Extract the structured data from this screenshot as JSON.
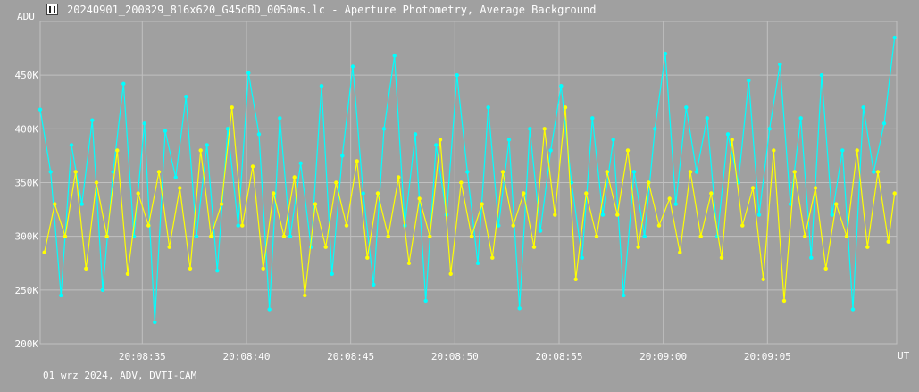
{
  "window": {
    "title": "20240901_200829_816x620_G45dBD_0050ms.lc - Aperture Photometry, Average Background",
    "icon": "lightcurve-app-icon"
  },
  "footer": {
    "caption": "01 wrz 2024, ADV, DVTI-CAM"
  },
  "colors": {
    "background": "#a0a0a0",
    "grid": "#c0c0c0",
    "series_target": "#00ffff",
    "series_comparison": "#ffff00",
    "text": "#ffffff"
  },
  "chart_data": {
    "type": "line",
    "title": "",
    "ylabel": "ADU",
    "xlabel": "UT",
    "ylim": [
      200000,
      500000
    ],
    "xlim": [
      "20:08:30.1",
      "20:09:11.2"
    ],
    "y_ticks": [
      {
        "value": 200000,
        "label": "200K"
      },
      {
        "value": 250000,
        "label": "250K"
      },
      {
        "value": 300000,
        "label": "300K"
      },
      {
        "value": 350000,
        "label": "350K"
      },
      {
        "value": 400000,
        "label": "400K"
      },
      {
        "value": 450000,
        "label": "450K"
      }
    ],
    "x_ticks": [
      "20:08:35",
      "20:08:40",
      "20:08:45",
      "20:08:50",
      "20:08:55",
      "20:09:00",
      "20:09:05"
    ],
    "grid": true,
    "series": [
      {
        "color": "#00ffff",
        "x": [
          "20:08:30.1",
          "20:08:30.6",
          "20:08:31.1",
          "20:08:31.6",
          "20:08:32.1",
          "20:08:32.6",
          "20:08:33.1",
          "20:08:33.6",
          "20:08:34.1",
          "20:08:34.6",
          "20:08:35.1",
          "20:08:35.6",
          "20:08:36.1",
          "20:08:36.6",
          "20:08:37.1",
          "20:08:37.6",
          "20:08:38.1",
          "20:08:38.6",
          "20:08:39.1",
          "20:08:39.6",
          "20:08:40.1",
          "20:08:40.6",
          "20:08:41.1",
          "20:08:41.6",
          "20:08:42.1",
          "20:08:42.6",
          "20:08:43.1",
          "20:08:43.6",
          "20:08:44.1",
          "20:08:44.6",
          "20:08:45.1",
          "20:08:45.6",
          "20:08:46.1",
          "20:08:46.6",
          "20:08:47.1",
          "20:08:47.6",
          "20:08:48.1",
          "20:08:48.6",
          "20:08:49.1",
          "20:08:49.6",
          "20:08:50.1",
          "20:08:50.6",
          "20:08:51.1",
          "20:08:51.6",
          "20:08:52.1",
          "20:08:52.6",
          "20:08:53.1",
          "20:08:53.6",
          "20:08:54.1",
          "20:08:54.6",
          "20:08:55.1",
          "20:08:55.6",
          "20:08:56.1",
          "20:08:56.6",
          "20:08:57.1",
          "20:08:57.6",
          "20:08:58.1",
          "20:08:58.6",
          "20:08:59.1",
          "20:08:59.6",
          "20:09:00.1",
          "20:09:00.6",
          "20:09:01.1",
          "20:09:01.6",
          "20:09:02.1",
          "20:09:02.6",
          "20:09:03.1",
          "20:09:03.6",
          "20:09:04.1",
          "20:09:04.6",
          "20:09:05.1",
          "20:09:05.6",
          "20:09:06.1",
          "20:09:06.6",
          "20:09:07.1",
          "20:09:07.6",
          "20:09:08.1",
          "20:09:08.6",
          "20:09:09.1",
          "20:09:09.6",
          "20:09:10.1",
          "20:09:10.6",
          "20:09:11.1"
        ],
        "values": [
          418000,
          360000,
          245000,
          385000,
          330000,
          408000,
          250000,
          360000,
          442000,
          300000,
          405000,
          220000,
          398000,
          355000,
          430000,
          300000,
          385000,
          268000,
          400000,
          310000,
          452000,
          395000,
          232000,
          410000,
          300000,
          368000,
          290000,
          440000,
          265000,
          375000,
          458000,
          340000,
          255000,
          400000,
          468000,
          310000,
          395000,
          240000,
          385000,
          320000,
          450000,
          360000,
          275000,
          420000,
          310000,
          390000,
          233000,
          400000,
          305000,
          380000,
          440000,
          350000,
          280000,
          410000,
          320000,
          390000,
          245000,
          360000,
          300000,
          400000,
          470000,
          330000,
          420000,
          360000,
          410000,
          300000,
          395000,
          350000,
          445000,
          320000,
          400000,
          460000,
          330000,
          410000,
          280000,
          450000,
          320000,
          380000,
          232000,
          420000,
          360000,
          405000,
          485000
        ]
      },
      {
        "color": "#ffff00",
        "x": [
          "20:08:30.3",
          "20:08:30.8",
          "20:08:31.3",
          "20:08:31.8",
          "20:08:32.3",
          "20:08:32.8",
          "20:08:33.3",
          "20:08:33.8",
          "20:08:34.3",
          "20:08:34.8",
          "20:08:35.3",
          "20:08:35.8",
          "20:08:36.3",
          "20:08:36.8",
          "20:08:37.3",
          "20:08:37.8",
          "20:08:38.3",
          "20:08:38.8",
          "20:08:39.3",
          "20:08:39.8",
          "20:08:40.3",
          "20:08:40.8",
          "20:08:41.3",
          "20:08:41.8",
          "20:08:42.3",
          "20:08:42.8",
          "20:08:43.3",
          "20:08:43.8",
          "20:08:44.3",
          "20:08:44.8",
          "20:08:45.3",
          "20:08:45.8",
          "20:08:46.3",
          "20:08:46.8",
          "20:08:47.3",
          "20:08:47.8",
          "20:08:48.3",
          "20:08:48.8",
          "20:08:49.3",
          "20:08:49.8",
          "20:08:50.3",
          "20:08:50.8",
          "20:08:51.3",
          "20:08:51.8",
          "20:08:52.3",
          "20:08:52.8",
          "20:08:53.3",
          "20:08:53.8",
          "20:08:54.3",
          "20:08:54.8",
          "20:08:55.3",
          "20:08:55.8",
          "20:08:56.3",
          "20:08:56.8",
          "20:08:57.3",
          "20:08:57.8",
          "20:08:58.3",
          "20:08:58.8",
          "20:08:59.3",
          "20:08:59.8",
          "20:09:00.3",
          "20:09:00.8",
          "20:09:01.3",
          "20:09:01.8",
          "20:09:02.3",
          "20:09:02.8",
          "20:09:03.3",
          "20:09:03.8",
          "20:09:04.3",
          "20:09:04.8",
          "20:09:05.3",
          "20:09:05.8",
          "20:09:06.3",
          "20:09:06.8",
          "20:09:07.3",
          "20:09:07.8",
          "20:09:08.3",
          "20:09:08.8",
          "20:09:09.3",
          "20:09:09.8",
          "20:09:10.3",
          "20:09:10.8",
          "20:09:11.1"
        ],
        "values": [
          285000,
          330000,
          300000,
          360000,
          270000,
          350000,
          300000,
          380000,
          265000,
          340000,
          310000,
          360000,
          290000,
          345000,
          270000,
          380000,
          300000,
          330000,
          420000,
          310000,
          365000,
          270000,
          340000,
          300000,
          355000,
          245000,
          330000,
          290000,
          350000,
          310000,
          370000,
          280000,
          340000,
          300000,
          355000,
          275000,
          335000,
          300000,
          390000,
          265000,
          350000,
          300000,
          330000,
          280000,
          360000,
          310000,
          340000,
          290000,
          400000,
          320000,
          420000,
          260000,
          340000,
          300000,
          360000,
          320000,
          380000,
          290000,
          350000,
          310000,
          335000,
          285000,
          360000,
          300000,
          340000,
          280000,
          390000,
          310000,
          345000,
          260000,
          380000,
          240000,
          360000,
          300000,
          345000,
          270000,
          330000,
          300000,
          380000,
          290000,
          360000,
          295000,
          340000
        ]
      }
    ]
  }
}
